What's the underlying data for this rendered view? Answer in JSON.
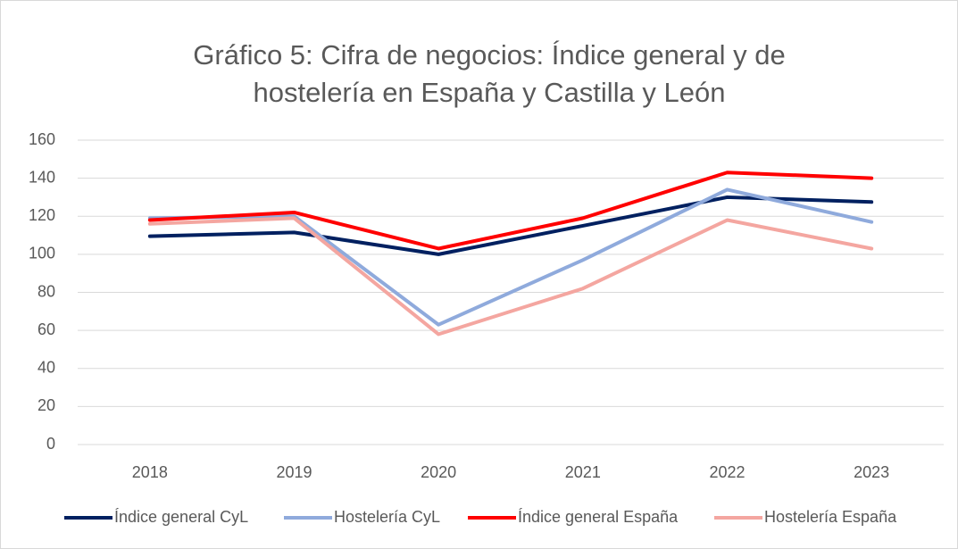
{
  "chart_data": {
    "type": "line",
    "title": [
      "Gráfico 5: Cifra de negocios: Índice general y de",
      "hostelería en España y Castilla y León"
    ],
    "categories": [
      "2018",
      "2019",
      "2020",
      "2021",
      "2022",
      "2023"
    ],
    "series": [
      {
        "name": "Índice general CyL",
        "color": "#002060",
        "values": [
          109.5,
          111.5,
          100,
          115,
          130,
          127.5
        ]
      },
      {
        "name": "Hostelería CyL",
        "color": "#8faadc",
        "values": [
          119,
          120,
          63,
          97,
          134,
          117
        ]
      },
      {
        "name": "Índice general España",
        "color": "#ff0000",
        "values": [
          118,
          122,
          103,
          119,
          143,
          140
        ]
      },
      {
        "name": "Hostelería España",
        "color": "#f4a6a0",
        "values": [
          116,
          119,
          58,
          82,
          118,
          103
        ]
      }
    ],
    "ylim": [
      0,
      160
    ],
    "yticks": [
      0,
      20,
      40,
      60,
      80,
      100,
      120,
      140,
      160
    ],
    "grid": true,
    "legend": "bottom"
  }
}
